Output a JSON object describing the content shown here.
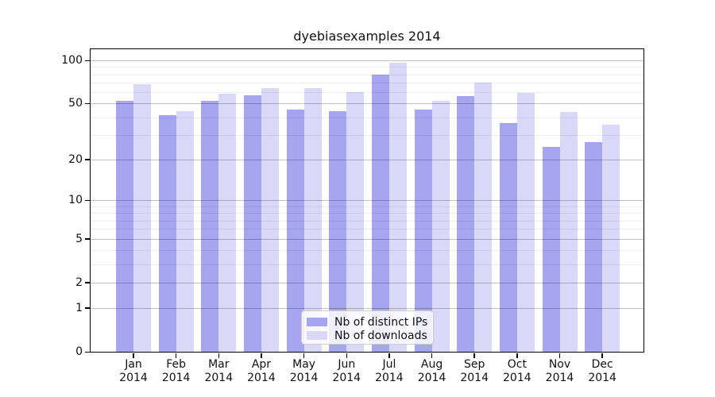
{
  "title": "dyebiasexamples 2014",
  "chart_data": {
    "type": "bar",
    "title": "dyebiasexamples 2014",
    "categories": [
      "Jan",
      "Feb",
      "Mar",
      "Apr",
      "May",
      "Jun",
      "Jul",
      "Aug",
      "Sep",
      "Oct",
      "Nov",
      "Dec"
    ],
    "year_label": "2014",
    "series": [
      {
        "name": "Nb of distinct IPs",
        "color": "#a5a5f0",
        "values": [
          53,
          42,
          53,
          58,
          46,
          45,
          81,
          46,
          57,
          37,
          25,
          27
        ]
      },
      {
        "name": "Nb of downloads",
        "color": "#d9d9f7",
        "values": [
          69,
          45,
          59,
          65,
          65,
          61,
          97,
          53,
          71,
          60,
          44,
          36
        ]
      }
    ],
    "yscale": "log1p",
    "major_yticks": [
      0,
      1,
      2,
      5,
      10,
      20,
      50,
      100
    ],
    "minor_yticks": [
      3,
      4,
      6,
      7,
      8,
      9,
      30,
      40,
      60,
      70,
      80,
      90
    ],
    "ylim": [
      0,
      120
    ],
    "grid": "both",
    "legend_position": "lower-center",
    "colors": {
      "distinct_ips": "#a5a5f0",
      "downloads": "#d9d9f7",
      "grid_major": "rgba(0,0,0,0.24)",
      "grid_minor": "rgba(0,0,0,0.07)"
    }
  }
}
